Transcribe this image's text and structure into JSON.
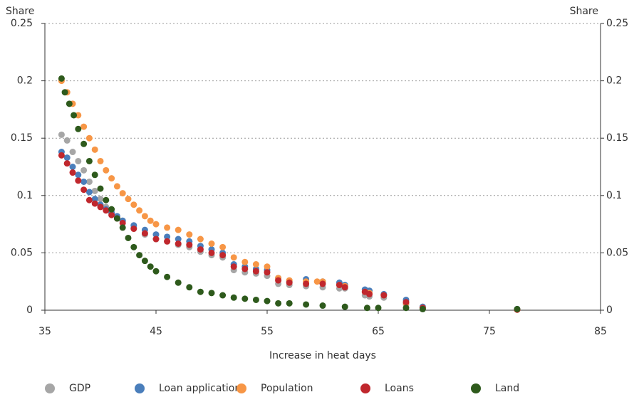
{
  "chart_data": {
    "type": "scatter",
    "ylabel": "Share",
    "y2label": "Share",
    "xlabel": "Increase in heat days",
    "xlim": [
      35,
      85
    ],
    "xticks": [
      35,
      45,
      55,
      65,
      75,
      85
    ],
    "ylim": [
      0,
      0.25
    ],
    "yticks": [
      0,
      0.05,
      0.1,
      0.15,
      0.2,
      0.25
    ],
    "y2lim": [
      0,
      0.25
    ],
    "y2ticks": [
      0,
      0.05,
      0.1,
      0.15,
      0.2,
      0.25
    ],
    "grid": true,
    "legend": "bottom",
    "series": [
      {
        "name": "GDP",
        "color": "#a6a6a6",
        "x": [
          36.5,
          37,
          37.5,
          38,
          38.5,
          39,
          39.5,
          40,
          40.5,
          41,
          42,
          43,
          44,
          45,
          46,
          47,
          48,
          49,
          50,
          51,
          52,
          53,
          54,
          55,
          56,
          57,
          58.5,
          60,
          61.5,
          62,
          63.8,
          64.2,
          65.5,
          67.5,
          69,
          77.5
        ],
        "values": [
          0.153,
          0.148,
          0.138,
          0.13,
          0.122,
          0.112,
          0.104,
          0.097,
          0.09,
          0.085,
          0.078,
          0.072,
          0.066,
          0.062,
          0.06,
          0.057,
          0.055,
          0.051,
          0.048,
          0.046,
          0.035,
          0.033,
          0.032,
          0.03,
          0.023,
          0.022,
          0.021,
          0.02,
          0.019,
          0.019,
          0.013,
          0.012,
          0.011,
          0.005,
          0.001,
          0.0005
        ]
      },
      {
        "name": "Loan applications",
        "color": "#4a7ebb",
        "x": [
          36.5,
          37,
          37.5,
          38,
          38.5,
          39,
          39.5,
          40,
          40.5,
          41,
          41.5,
          42,
          43,
          44,
          45,
          46,
          47,
          48,
          49,
          50,
          51,
          52,
          53,
          54,
          55,
          56,
          57,
          58.5,
          60,
          61.5,
          62,
          63.8,
          64.2,
          65.5,
          67.5,
          69,
          77.5
        ],
        "values": [
          0.138,
          0.133,
          0.125,
          0.118,
          0.112,
          0.103,
          0.097,
          0.092,
          0.088,
          0.085,
          0.082,
          0.078,
          0.074,
          0.07,
          0.066,
          0.064,
          0.062,
          0.06,
          0.056,
          0.053,
          0.05,
          0.04,
          0.038,
          0.036,
          0.035,
          0.028,
          0.025,
          0.027,
          0.025,
          0.024,
          0.022,
          0.018,
          0.017,
          0.014,
          0.009,
          0.003,
          0.001
        ]
      },
      {
        "name": "Population",
        "color": "#f79646",
        "x": [
          36.5,
          37,
          37.5,
          38,
          38.5,
          39,
          39.5,
          40,
          40.5,
          41,
          41.5,
          42,
          42.5,
          43,
          43.5,
          44,
          44.5,
          45,
          46,
          47,
          48,
          49,
          50,
          51,
          52,
          53,
          54,
          55,
          56,
          57,
          58.5,
          59.5,
          60,
          61.5,
          62,
          63.8,
          64.2,
          65.5,
          67.5,
          69,
          77.5
        ],
        "values": [
          0.2,
          0.19,
          0.18,
          0.17,
          0.16,
          0.15,
          0.14,
          0.13,
          0.122,
          0.115,
          0.108,
          0.102,
          0.097,
          0.092,
          0.087,
          0.082,
          0.078,
          0.075,
          0.072,
          0.07,
          0.066,
          0.062,
          0.058,
          0.055,
          0.046,
          0.042,
          0.04,
          0.038,
          0.028,
          0.026,
          0.025,
          0.025,
          0.025,
          0.022,
          0.021,
          0.016,
          0.015,
          0.013,
          0.006,
          0.002,
          0.0005
        ]
      },
      {
        "name": "Loans",
        "color": "#c0272d",
        "x": [
          36.5,
          37,
          37.5,
          38,
          38.5,
          39,
          39.5,
          40,
          40.5,
          41,
          41.5,
          42,
          43,
          44,
          45,
          46,
          47,
          48,
          49,
          50,
          51,
          52,
          53,
          54,
          55,
          56,
          57,
          58.5,
          60,
          61.5,
          62,
          63.8,
          64.2,
          65.5,
          67.5,
          69,
          77.5
        ],
        "values": [
          0.135,
          0.128,
          0.12,
          0.113,
          0.105,
          0.096,
          0.093,
          0.09,
          0.087,
          0.083,
          0.08,
          0.076,
          0.071,
          0.067,
          0.062,
          0.06,
          0.058,
          0.057,
          0.053,
          0.05,
          0.048,
          0.038,
          0.036,
          0.034,
          0.033,
          0.026,
          0.024,
          0.023,
          0.023,
          0.022,
          0.02,
          0.016,
          0.014,
          0.013,
          0.007,
          0.002,
          0.0005
        ]
      },
      {
        "name": "Land",
        "color": "#2e5a1c",
        "x": [
          36.5,
          36.8,
          37.2,
          37.6,
          38,
          38.5,
          39,
          39.5,
          40,
          40.5,
          41,
          41.5,
          42,
          42.5,
          43,
          43.5,
          44,
          44.5,
          45,
          46,
          47,
          48,
          49,
          50,
          51,
          52,
          53,
          54,
          55,
          56,
          57,
          58.5,
          60,
          62,
          64,
          65,
          67.5,
          69,
          77.5
        ],
        "values": [
          0.202,
          0.19,
          0.18,
          0.17,
          0.158,
          0.145,
          0.13,
          0.118,
          0.106,
          0.096,
          0.088,
          0.08,
          0.072,
          0.063,
          0.055,
          0.048,
          0.043,
          0.038,
          0.034,
          0.029,
          0.024,
          0.02,
          0.016,
          0.015,
          0.013,
          0.011,
          0.01,
          0.009,
          0.008,
          0.006,
          0.006,
          0.005,
          0.004,
          0.003,
          0.002,
          0.002,
          0.002,
          0.001,
          0.001
        ]
      }
    ]
  }
}
